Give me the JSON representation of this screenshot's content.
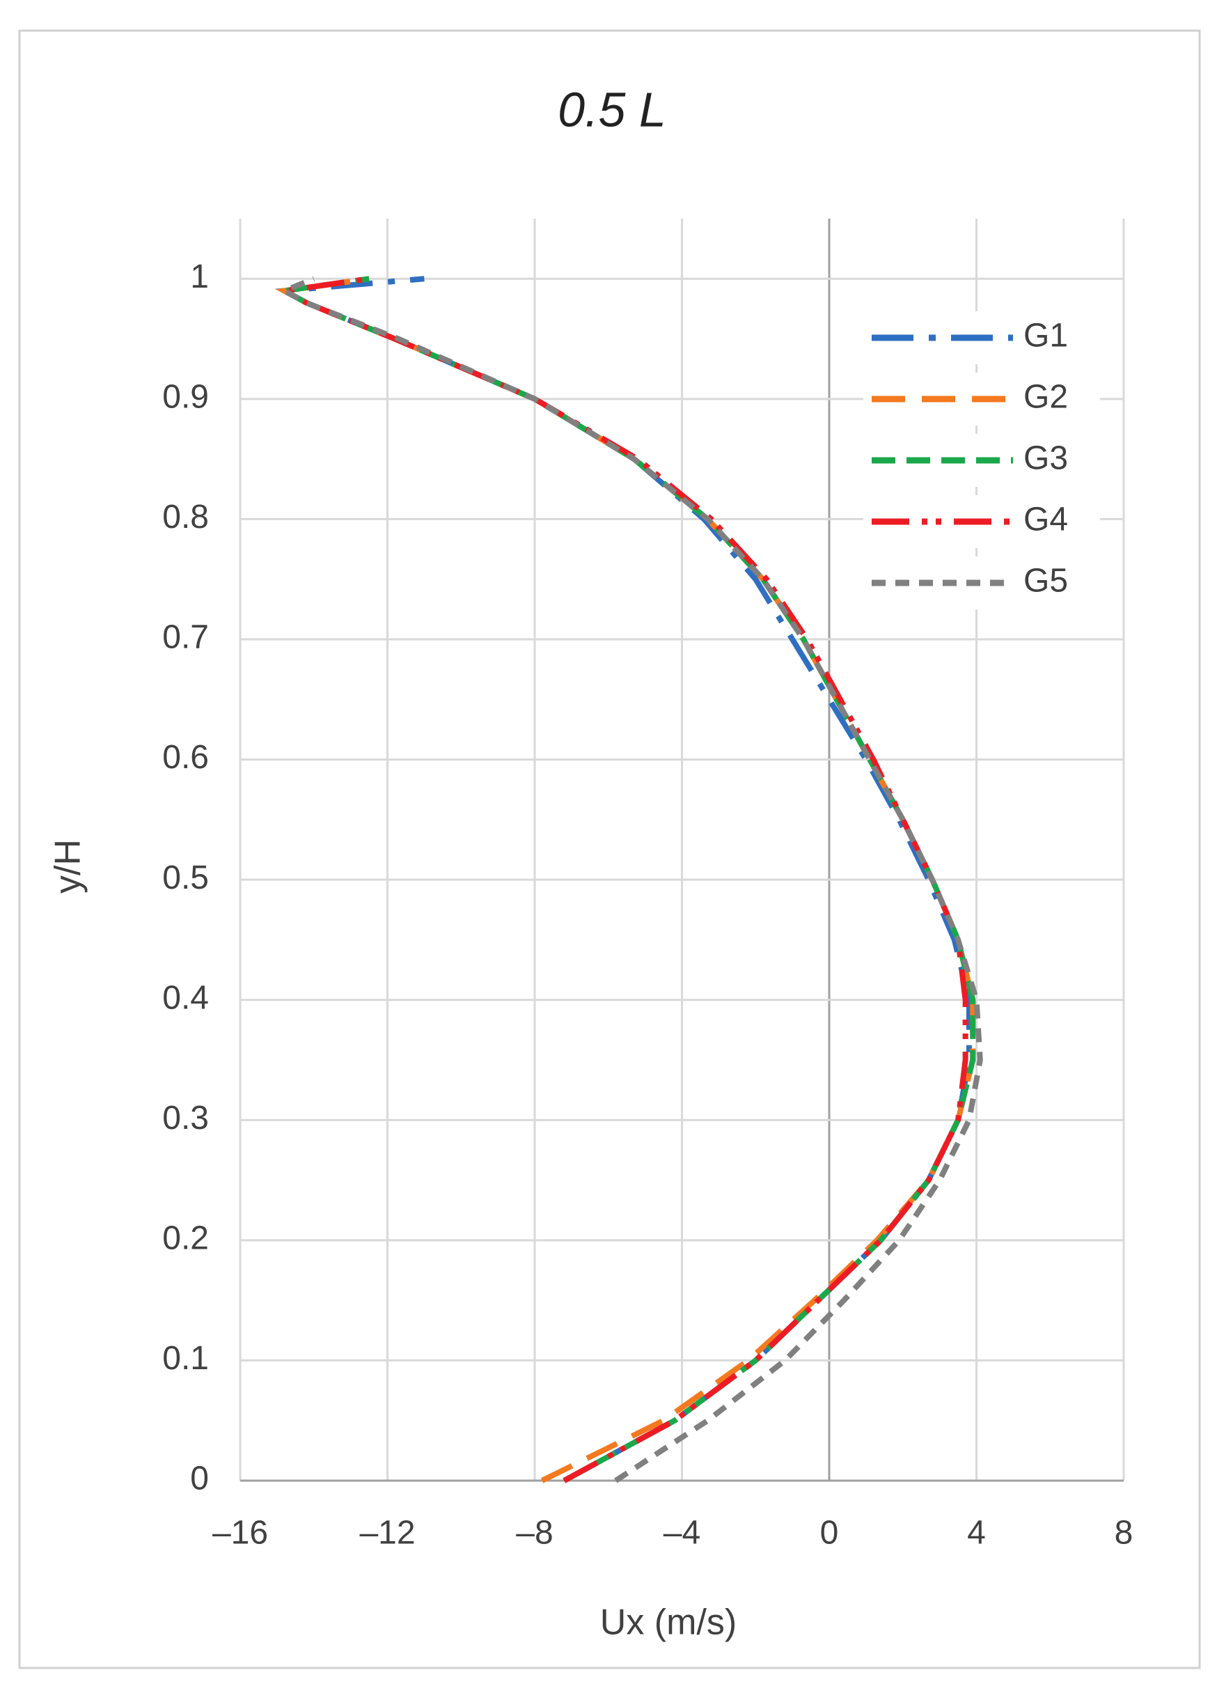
{
  "chart_data": {
    "type": "line",
    "title": "0.5 L",
    "xlabel": "Ux (m/s)",
    "ylabel": "y/H",
    "xlim": [
      -16,
      8
    ],
    "ylim": [
      0,
      1.05
    ],
    "xticks": [
      {
        "value": -16,
        "label": "–16"
      },
      {
        "value": -12,
        "label": "–12"
      },
      {
        "value": -8,
        "label": "–8"
      },
      {
        "value": -4,
        "label": "–4"
      },
      0,
      4,
      8
    ],
    "yticks": [
      0,
      0.1,
      0.2,
      0.3,
      0.4,
      0.5,
      0.6,
      0.7,
      0.8,
      0.9,
      1
    ],
    "grid": true,
    "legend": "upper right",
    "series": [
      {
        "name": "G1",
        "color": "#2e6fc2",
        "dash": "60 22 10 22",
        "x": [
          -7.2,
          -4.2,
          -2.0,
          -0.3,
          1.4,
          2.7,
          3.5,
          3.8,
          3.8,
          3.4,
          2.7,
          1.9,
          1.0,
          0.0,
          -1.0,
          -2.0,
          -3.4,
          -5.3,
          -8.0,
          -11.8,
          -14.2,
          -14.8,
          -11.0
        ],
        "values": [
          0,
          0.05,
          0.1,
          0.15,
          0.2,
          0.25,
          0.3,
          0.35,
          0.4,
          0.45,
          0.5,
          0.55,
          0.6,
          0.65,
          0.7,
          0.75,
          0.8,
          0.85,
          0.9,
          0.95,
          0.98,
          0.99,
          1
        ]
      },
      {
        "name": "G2",
        "color": "#f4791f",
        "dash": "48 24",
        "x": [
          -7.8,
          -4.5,
          -2.2,
          -0.4,
          1.3,
          2.7,
          3.5,
          3.9,
          3.9,
          3.5,
          2.8,
          2.0,
          1.1,
          0.2,
          -0.7,
          -1.8,
          -3.3,
          -5.3,
          -8.0,
          -11.8,
          -14.2,
          -14.8,
          -12.5
        ],
        "values": [
          0,
          0.05,
          0.1,
          0.15,
          0.2,
          0.25,
          0.3,
          0.35,
          0.4,
          0.45,
          0.5,
          0.55,
          0.6,
          0.65,
          0.7,
          0.75,
          0.8,
          0.85,
          0.9,
          0.95,
          0.98,
          0.99,
          1
        ]
      },
      {
        "name": "G3",
        "color": "#1aa84b",
        "dash": "34 16",
        "x": [
          -7.2,
          -4.2,
          -2.0,
          -0.3,
          1.4,
          2.7,
          3.5,
          3.9,
          3.9,
          3.5,
          2.8,
          2.0,
          1.1,
          0.2,
          -0.7,
          -1.8,
          -3.3,
          -5.3,
          -8.0,
          -11.8,
          -14.2,
          -14.8,
          -12.5
        ],
        "values": [
          0,
          0.05,
          0.1,
          0.15,
          0.2,
          0.25,
          0.3,
          0.35,
          0.4,
          0.45,
          0.5,
          0.55,
          0.6,
          0.65,
          0.7,
          0.75,
          0.8,
          0.85,
          0.9,
          0.95,
          0.98,
          0.99,
          1
        ]
      },
      {
        "name": "G4",
        "color": "#ed1c24",
        "dash": "54 18 8 12 8 18",
        "x": [
          -7.2,
          -4.2,
          -2.0,
          -0.3,
          1.4,
          2.7,
          3.5,
          3.7,
          3.7,
          3.5,
          2.8,
          2.0,
          1.2,
          0.3,
          -0.6,
          -1.7,
          -3.2,
          -5.2,
          -8.0,
          -11.8,
          -14.2,
          -14.8,
          -12.5
        ],
        "values": [
          0,
          0.05,
          0.1,
          0.15,
          0.2,
          0.25,
          0.3,
          0.35,
          0.4,
          0.45,
          0.5,
          0.55,
          0.6,
          0.65,
          0.7,
          0.75,
          0.8,
          0.85,
          0.9,
          0.95,
          0.98,
          0.99,
          1
        ]
      },
      {
        "name": "G5",
        "color": "#808080",
        "dash": "20 14",
        "x": [
          -5.8,
          -3.3,
          -1.2,
          0.4,
          1.9,
          3.0,
          3.8,
          4.1,
          4.0,
          3.5,
          2.8,
          2.0,
          1.1,
          0.2,
          -0.7,
          -1.8,
          -3.3,
          -5.3,
          -8.0,
          -11.7,
          -14.2,
          -14.8,
          -14.0
        ],
        "values": [
          0,
          0.05,
          0.1,
          0.15,
          0.2,
          0.25,
          0.3,
          0.35,
          0.4,
          0.45,
          0.5,
          0.55,
          0.6,
          0.65,
          0.7,
          0.75,
          0.8,
          0.85,
          0.9,
          0.95,
          0.98,
          0.99,
          1
        ]
      }
    ]
  }
}
